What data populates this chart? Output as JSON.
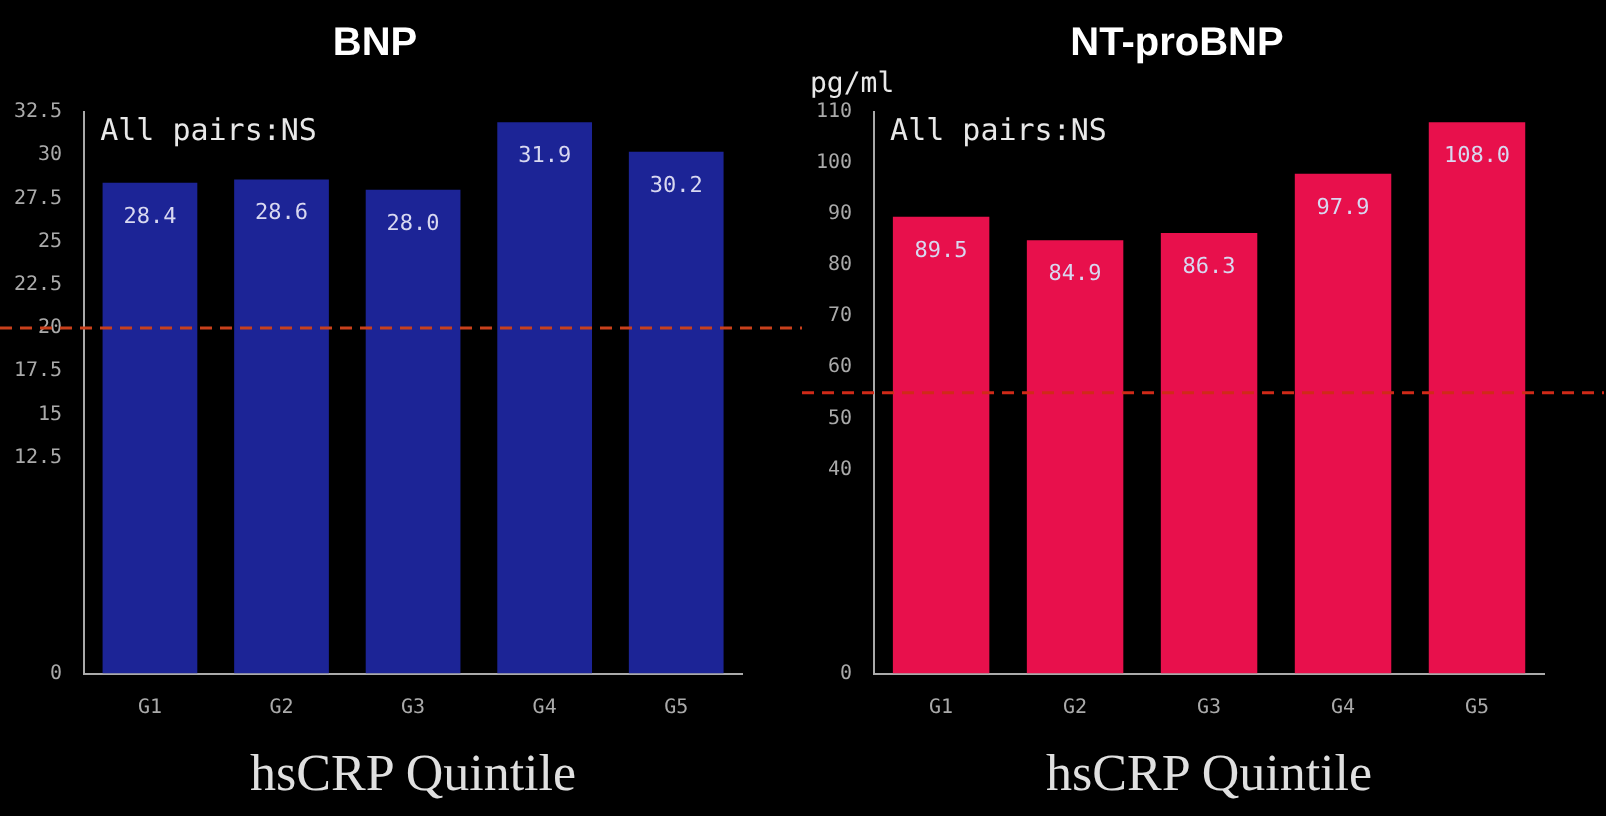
{
  "chart_data": [
    {
      "type": "bar",
      "title": "BNP",
      "xlabel": "hsCRP Quintile",
      "annotations": [
        "All pairs:NS"
      ],
      "categories": [
        "G1",
        "G2",
        "G3",
        "G4",
        "G5"
      ],
      "series": [
        {
          "color": "#1c2496",
          "values": [
            28.4,
            28.6,
            28.0,
            31.9,
            30.2
          ],
          "value_labels": [
            "28.4",
            "28.6",
            "28.0",
            "31.9",
            "30.2"
          ]
        }
      ],
      "ylim": [
        0,
        32.5
      ],
      "yticks": [
        0,
        12.5,
        15,
        17.5,
        20,
        22.5,
        25,
        27.5,
        30,
        32.5
      ],
      "ref_lines": [
        {
          "axis": "y",
          "value": 20,
          "color": "#c8401c",
          "line_style": "dashed"
        }
      ],
      "grid": false,
      "legend": false
    },
    {
      "type": "bar",
      "title": "NT-proBNP",
      "ylabel": "pg/ml",
      "xlabel": "hsCRP Quintile",
      "annotations": [
        "All pairs:NS"
      ],
      "categories": [
        "G1",
        "G2",
        "G3",
        "G4",
        "G5"
      ],
      "series": [
        {
          "color": "#e8104c",
          "values": [
            89.5,
            84.9,
            86.3,
            97.9,
            108.0
          ],
          "value_labels": [
            "89.5",
            "84.9",
            "86.3",
            "97.9",
            "108.0"
          ]
        }
      ],
      "ylim": [
        0,
        110
      ],
      "yticks": [
        0,
        40,
        50,
        60,
        70,
        80,
        90,
        100,
        110
      ],
      "ref_lines": [
        {
          "axis": "y",
          "value": 55,
          "color": "#d02a18",
          "line_style": "dashed"
        }
      ],
      "grid": false,
      "legend": false
    }
  ]
}
